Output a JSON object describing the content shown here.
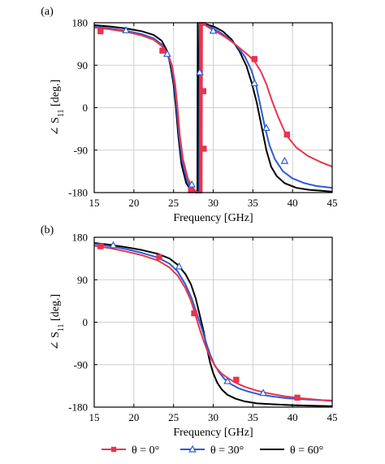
{
  "chart_data": [
    {
      "panel_label": "(a)",
      "type": "line",
      "xlabel": "Frequency [GHz]",
      "ylabel_prefix": "∠ S",
      "ylabel_sub": "11",
      "ylabel_suffix": " [deg.]",
      "xlim": [
        15,
        45
      ],
      "ylim": [
        -180,
        180
      ],
      "xticks": [
        15,
        20,
        25,
        30,
        35,
        40,
        45
      ],
      "yticks": [
        180,
        90,
        0,
        -90,
        -180
      ],
      "grid": true,
      "series": [
        {
          "name": "θ = 0°",
          "color": "#e8344f",
          "marker": "square",
          "x": [
            15,
            17,
            19,
            21,
            22.5,
            23.5,
            24.3,
            24.8,
            25.2,
            25.5,
            25.8,
            26.2,
            26.8,
            27.4,
            27.9,
            28.2,
            28.35,
            28.4,
            28.45,
            28.5,
            28.55,
            28.6,
            28.7,
            28.8,
            29,
            29.5,
            30.5,
            31.5,
            32.5,
            33.5,
            34.5,
            35.3,
            36,
            36.7,
            37.4,
            38.2,
            39.2,
            40.5,
            42,
            43.5,
            45
          ],
          "y": [
            170,
            166,
            161,
            153,
            144,
            131,
            113,
            90,
            50,
            0,
            -60,
            -110,
            -150,
            -170,
            -178,
            -180,
            -180,
            180,
            60,
            -120,
            -180,
            180,
            179,
            177,
            175,
            169,
            160,
            150,
            138,
            124,
            110,
            96,
            77,
            50,
            15,
            -20,
            -58,
            -85,
            -103,
            -115,
            -125
          ],
          "markers_x": [
            15.8,
            23.6,
            27.2,
            28.7,
            28.75,
            28.8,
            35.2,
            39.3
          ],
          "markers_y": [
            162,
            121,
            -175,
            180,
            35,
            -87,
            103,
            -57
          ]
        },
        {
          "name": "θ = 30°",
          "color": "#2c5bd6",
          "marker": "triangle",
          "x": [
            15,
            17,
            19,
            21,
            22.5,
            23.5,
            24.2,
            24.7,
            25.1,
            25.4,
            25.7,
            26.1,
            26.7,
            27.3,
            27.8,
            28.1,
            28.25,
            28.3,
            28.35,
            28.4,
            28.45,
            28.5,
            28.6,
            28.8,
            29.2,
            30,
            31,
            32,
            33,
            34,
            34.8,
            35.4,
            36,
            36.5,
            37.1,
            37.8,
            38.8,
            40,
            41.5,
            43,
            45
          ],
          "y": [
            172,
            168,
            163,
            156,
            147,
            134,
            115,
            90,
            50,
            0,
            -60,
            -115,
            -155,
            -172,
            -179,
            -180,
            -180,
            180,
            70,
            -140,
            -180,
            180,
            179,
            177,
            174,
            168,
            158,
            146,
            130,
            108,
            80,
            48,
            0,
            -40,
            -80,
            -110,
            -135,
            -150,
            -160,
            -166,
            -170
          ],
          "markers_x": [
            19,
            24.2,
            27.3,
            28.3,
            30,
            35.2,
            36.7,
            39
          ],
          "markers_y": [
            164,
            114,
            -163,
            75,
            163,
            52,
            -43,
            -113
          ]
        },
        {
          "name": "θ = 60°",
          "color": "#000000",
          "marker": "none",
          "x": [
            15,
            17,
            19,
            21,
            22.5,
            23.5,
            24.2,
            24.6,
            25,
            25.3,
            25.6,
            26,
            26.6,
            27.2,
            27.6,
            27.9,
            28,
            28.05,
            28.1,
            28.15,
            28.2,
            28.3,
            28.5,
            28.8,
            29.3,
            30.2,
            31.2,
            32.3,
            33.3,
            34.2,
            34.9,
            35.5,
            36.1,
            36.7,
            37.3,
            38,
            39,
            40.5,
            42,
            43.5,
            45
          ],
          "y": [
            175,
            172,
            168,
            162,
            154,
            142,
            120,
            90,
            50,
            0,
            -60,
            -120,
            -160,
            -175,
            -179,
            -180,
            -180,
            180,
            90,
            -150,
            -180,
            180,
            179,
            178,
            176,
            171,
            162,
            145,
            120,
            88,
            50,
            10,
            -40,
            -90,
            -125,
            -145,
            -160,
            -170,
            -174,
            -176,
            -178
          ]
        }
      ]
    },
    {
      "panel_label": "(b)",
      "type": "line",
      "xlabel": "Frequency [GHz]",
      "ylabel_prefix": "∠ S",
      "ylabel_sub": "11",
      "ylabel_suffix": " [deg.]",
      "xlim": [
        15,
        45
      ],
      "ylim": [
        -180,
        180
      ],
      "xticks": [
        15,
        20,
        25,
        30,
        35,
        40,
        45
      ],
      "yticks": [
        180,
        90,
        0,
        -90,
        -180
      ],
      "grid": true,
      "series": [
        {
          "name": "θ = 0°",
          "color": "#e8344f",
          "marker": "square",
          "x": [
            15,
            17,
            19,
            21,
            23,
            24.5,
            25.5,
            26.5,
            27.2,
            27.8,
            28.3,
            28.8,
            29.3,
            29.8,
            30.3,
            31,
            31.8,
            32.8,
            34,
            35.5,
            37,
            39,
            41,
            43,
            45
          ],
          "y": [
            162,
            157,
            150,
            142,
            131,
            116,
            99,
            72,
            45,
            13,
            -15,
            -40,
            -62,
            -80,
            -95,
            -108,
            -118,
            -128,
            -137,
            -145,
            -151,
            -157,
            -161,
            -164,
            -167
          ],
          "markers_x": [
            15.8,
            23.2,
            27.6,
            32.9,
            40.6
          ],
          "markers_y": [
            161,
            138,
            19,
            -122,
            -160
          ]
        },
        {
          "name": "θ = 30°",
          "color": "#2c5bd6",
          "marker": "triangle",
          "x": [
            15,
            17,
            19,
            21,
            23,
            24.5,
            25.5,
            26.5,
            27.3,
            28,
            28.6,
            29.1,
            29.6,
            30.1,
            30.7,
            31.4,
            32.2,
            33.2,
            34.4,
            35.8,
            37.3,
            39.2,
            41,
            43,
            45
          ],
          "y": [
            166,
            161,
            155,
            147,
            137,
            124,
            108,
            80,
            50,
            15,
            -15,
            -43,
            -68,
            -88,
            -105,
            -120,
            -131,
            -140,
            -147,
            -153,
            -157,
            -161,
            -163,
            -165,
            -166
          ],
          "markers_x": [
            17.4,
            25.7,
            31.8,
            36.3
          ],
          "markers_y": [
            163,
            118,
            -125,
            -150
          ]
        },
        {
          "name": "θ = 60°",
          "color": "#000000",
          "marker": "none",
          "x": [
            15,
            17,
            19,
            21,
            23,
            24.5,
            25.5,
            26.5,
            27.2,
            27.8,
            28.3,
            28.8,
            29.2,
            29.6,
            30,
            30.5,
            31.1,
            31.8,
            32.8,
            34,
            35.5,
            37.5,
            40,
            42.5,
            45
          ],
          "y": [
            168,
            164,
            159,
            153,
            145,
            135,
            122,
            102,
            80,
            50,
            15,
            -20,
            -55,
            -85,
            -108,
            -128,
            -143,
            -154,
            -162,
            -168,
            -172,
            -174,
            -176,
            -177,
            -178
          ]
        }
      ]
    }
  ]
}
